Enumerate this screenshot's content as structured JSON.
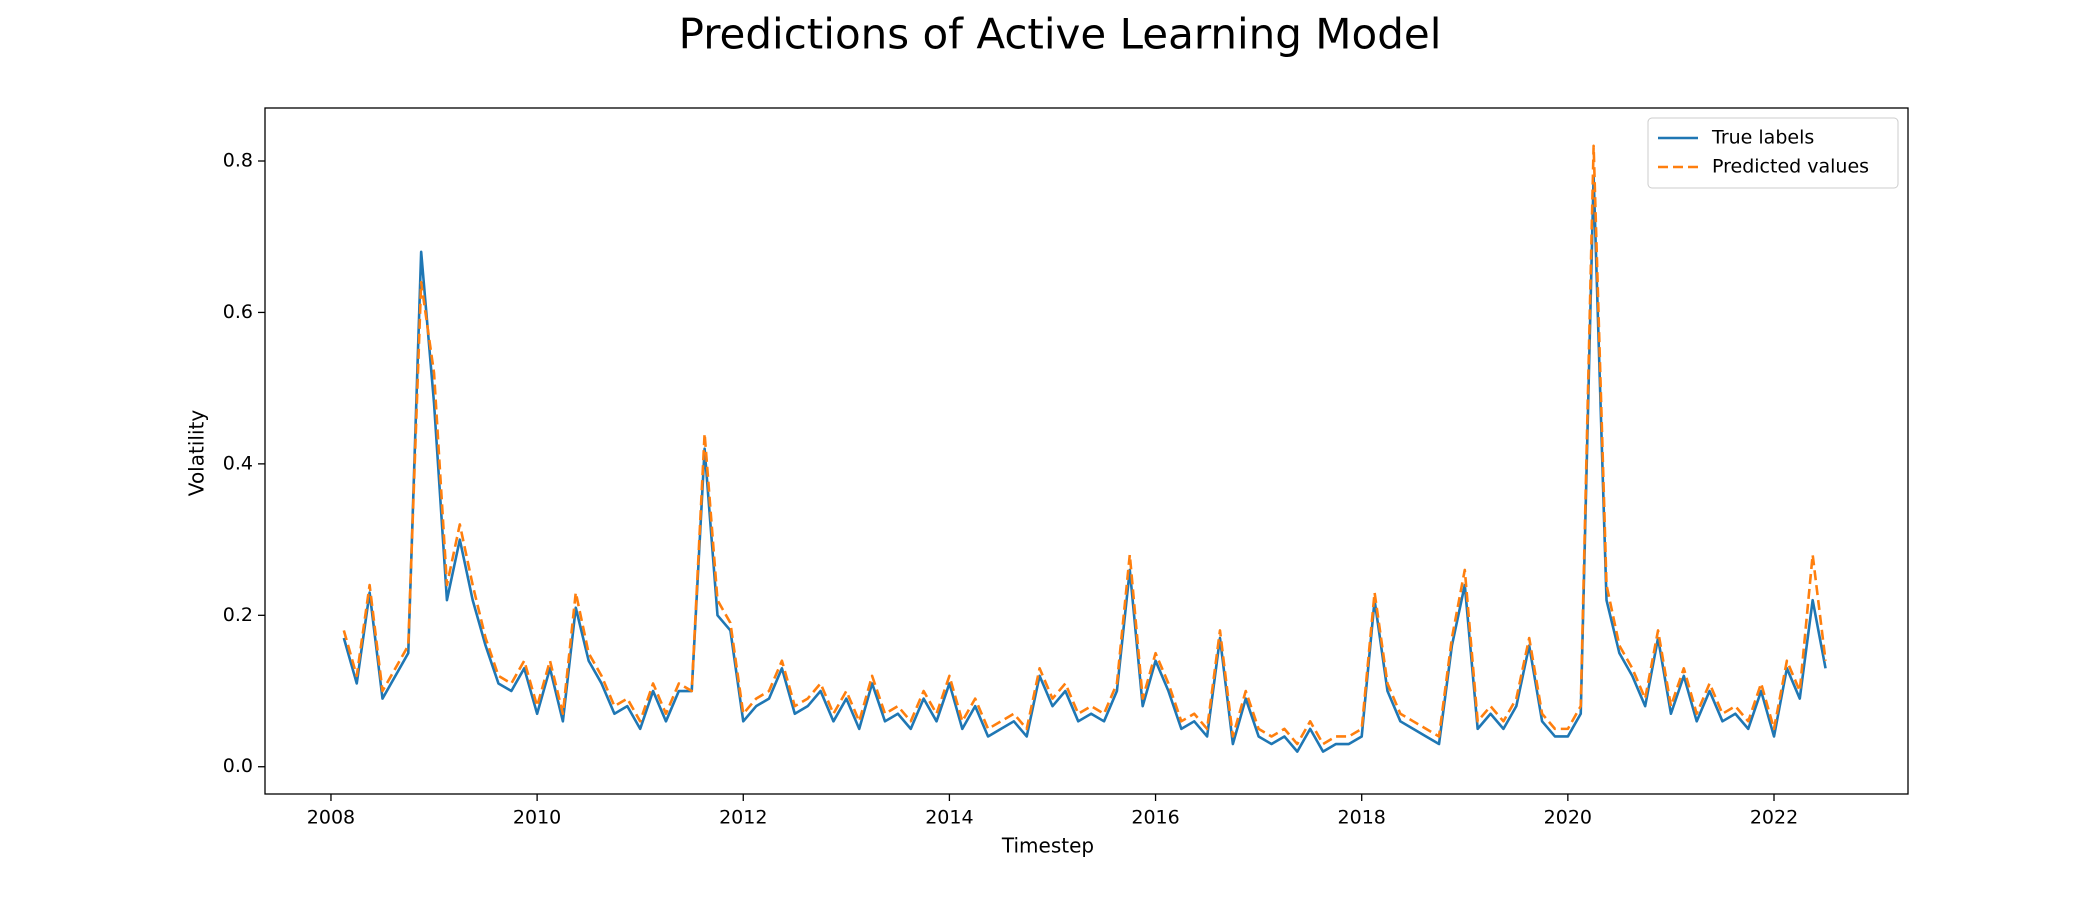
{
  "chart_data": {
    "type": "line",
    "title": "Predictions of Active Learning Model",
    "xlabel": "Timestep",
    "ylabel": "Volatility",
    "x": [
      2008.125,
      2008.25,
      2008.375,
      2008.5,
      2008.625,
      2008.75,
      2008.875,
      2009.0,
      2009.125,
      2009.25,
      2009.375,
      2009.5,
      2009.625,
      2009.75,
      2009.875,
      2010.0,
      2010.125,
      2010.25,
      2010.375,
      2010.5,
      2010.625,
      2010.75,
      2010.875,
      2011.0,
      2011.125,
      2011.25,
      2011.375,
      2011.5,
      2011.625,
      2011.75,
      2011.875,
      2012.0,
      2012.125,
      2012.25,
      2012.375,
      2012.5,
      2012.625,
      2012.75,
      2012.875,
      2013.0,
      2013.125,
      2013.25,
      2013.375,
      2013.5,
      2013.625,
      2013.75,
      2013.875,
      2014.0,
      2014.125,
      2014.25,
      2014.375,
      2014.5,
      2014.625,
      2014.75,
      2014.875,
      2015.0,
      2015.125,
      2015.25,
      2015.375,
      2015.5,
      2015.625,
      2015.75,
      2015.875,
      2016.0,
      2016.125,
      2016.25,
      2016.375,
      2016.5,
      2016.625,
      2016.75,
      2016.875,
      2017.0,
      2017.125,
      2017.25,
      2017.375,
      2017.5,
      2017.625,
      2017.75,
      2017.875,
      2018.0,
      2018.125,
      2018.25,
      2018.375,
      2018.5,
      2018.625,
      2018.75,
      2018.875,
      2019.0,
      2019.125,
      2019.25,
      2019.375,
      2019.5,
      2019.625,
      2019.75,
      2019.875,
      2020.0,
      2020.125,
      2020.25,
      2020.375,
      2020.5,
      2020.625,
      2020.75,
      2020.875,
      2021.0,
      2021.125,
      2021.25,
      2021.375,
      2021.5,
      2021.625,
      2021.75,
      2021.875,
      2022.0,
      2022.125,
      2022.25,
      2022.375,
      2022.5
    ],
    "series": [
      {
        "name": "True labels",
        "color": "#1f77b4",
        "dash": false,
        "values": [
          0.17,
          0.11,
          0.23,
          0.09,
          0.12,
          0.15,
          0.68,
          0.48,
          0.22,
          0.3,
          0.22,
          0.16,
          0.11,
          0.1,
          0.13,
          0.07,
          0.13,
          0.06,
          0.21,
          0.14,
          0.11,
          0.07,
          0.08,
          0.05,
          0.1,
          0.06,
          0.1,
          0.1,
          0.42,
          0.2,
          0.18,
          0.06,
          0.08,
          0.09,
          0.13,
          0.07,
          0.08,
          0.1,
          0.06,
          0.09,
          0.05,
          0.11,
          0.06,
          0.07,
          0.05,
          0.09,
          0.06,
          0.11,
          0.05,
          0.08,
          0.04,
          0.05,
          0.06,
          0.04,
          0.12,
          0.08,
          0.1,
          0.06,
          0.07,
          0.06,
          0.1,
          0.26,
          0.08,
          0.14,
          0.1,
          0.05,
          0.06,
          0.04,
          0.17,
          0.03,
          0.09,
          0.04,
          0.03,
          0.04,
          0.02,
          0.05,
          0.02,
          0.03,
          0.03,
          0.04,
          0.22,
          0.1,
          0.06,
          0.05,
          0.04,
          0.03,
          0.16,
          0.24,
          0.05,
          0.07,
          0.05,
          0.08,
          0.16,
          0.06,
          0.04,
          0.04,
          0.07,
          0.78,
          0.22,
          0.15,
          0.12,
          0.08,
          0.17,
          0.07,
          0.12,
          0.06,
          0.1,
          0.06,
          0.07,
          0.05,
          0.1,
          0.04,
          0.13,
          0.09,
          0.22,
          0.13
        ]
      },
      {
        "name": "Predicted values",
        "color": "#ff7f0e",
        "dash": true,
        "values": [
          0.18,
          0.12,
          0.24,
          0.1,
          0.13,
          0.16,
          0.64,
          0.52,
          0.24,
          0.32,
          0.24,
          0.17,
          0.12,
          0.11,
          0.14,
          0.08,
          0.14,
          0.07,
          0.23,
          0.15,
          0.12,
          0.08,
          0.09,
          0.06,
          0.11,
          0.07,
          0.11,
          0.1,
          0.44,
          0.22,
          0.19,
          0.07,
          0.09,
          0.1,
          0.14,
          0.08,
          0.09,
          0.11,
          0.07,
          0.1,
          0.06,
          0.12,
          0.07,
          0.08,
          0.06,
          0.1,
          0.07,
          0.12,
          0.06,
          0.09,
          0.05,
          0.06,
          0.07,
          0.05,
          0.13,
          0.09,
          0.11,
          0.07,
          0.08,
          0.07,
          0.11,
          0.28,
          0.09,
          0.15,
          0.11,
          0.06,
          0.07,
          0.05,
          0.18,
          0.04,
          0.1,
          0.05,
          0.04,
          0.05,
          0.03,
          0.06,
          0.03,
          0.04,
          0.04,
          0.05,
          0.23,
          0.11,
          0.07,
          0.06,
          0.05,
          0.04,
          0.17,
          0.26,
          0.06,
          0.08,
          0.06,
          0.09,
          0.17,
          0.07,
          0.05,
          0.05,
          0.08,
          0.82,
          0.24,
          0.16,
          0.13,
          0.09,
          0.18,
          0.08,
          0.13,
          0.07,
          0.11,
          0.07,
          0.08,
          0.06,
          0.11,
          0.05,
          0.14,
          0.1,
          0.28,
          0.14
        ]
      }
    ],
    "xlim": [
      2007.36,
      2023.3
    ],
    "xticks": [
      2008,
      2010,
      2012,
      2014,
      2016,
      2018,
      2020,
      2022
    ],
    "ylim": [
      -0.036,
      0.87
    ],
    "yticks": [
      {
        "value": 0,
        "label": "0.0"
      },
      0.2,
      0.4,
      0.6,
      0.8
    ],
    "legend": "upper right",
    "grid": false
  }
}
